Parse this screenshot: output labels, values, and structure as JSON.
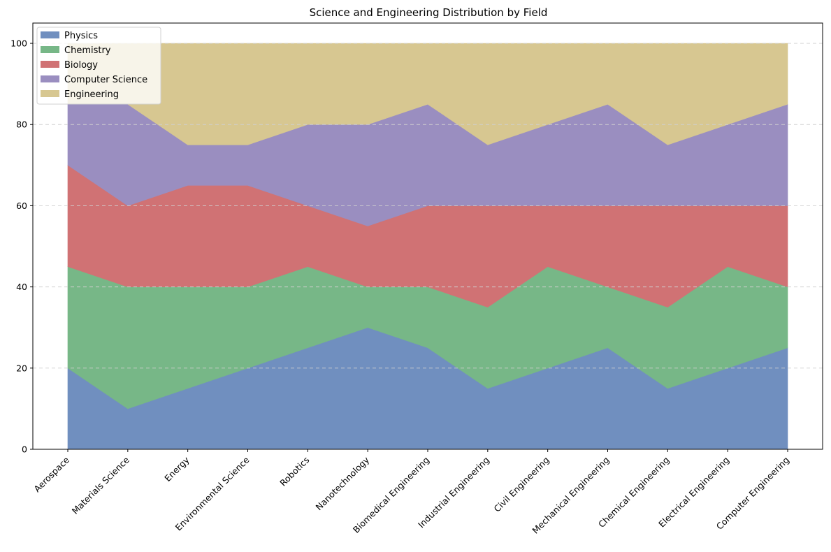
{
  "chart_data": {
    "type": "area",
    "stacked": true,
    "title": "Science and Engineering Distribution by Field",
    "xlabel": "",
    "ylabel": "",
    "ylim": [
      0,
      105
    ],
    "yticks": [
      0,
      20,
      40,
      60,
      80,
      100
    ],
    "grid": "y-dashed",
    "legend_position": "top-left",
    "categories": [
      "Aerospace",
      "Materials Science",
      "Energy",
      "Environmental Science",
      "Robotics",
      "Nanotechnology",
      "Biomedical Engineering",
      "Industrial Engineering",
      "Civil Engineering",
      "Mechanical Engineering",
      "Chemical Engineering",
      "Electrical Engineering",
      "Computer Engineering"
    ],
    "series": [
      {
        "name": "Physics",
        "color": "#708fbf",
        "values": [
          20,
          10,
          15,
          20,
          25,
          30,
          25,
          15,
          20,
          25,
          15,
          20,
          25
        ]
      },
      {
        "name": "Chemistry",
        "color": "#77b787",
        "values": [
          25,
          30,
          25,
          20,
          20,
          10,
          15,
          20,
          25,
          15,
          20,
          25,
          15
        ]
      },
      {
        "name": "Biology",
        "color": "#d07274",
        "values": [
          25,
          20,
          25,
          25,
          15,
          15,
          20,
          25,
          15,
          20,
          25,
          15,
          20
        ]
      },
      {
        "name": "Computer Science",
        "color": "#9a8ec0",
        "values": [
          15,
          25,
          10,
          10,
          20,
          25,
          25,
          15,
          20,
          25,
          15,
          20,
          25
        ]
      },
      {
        "name": "Engineering",
        "color": "#d7c791",
        "values": [
          15,
          15,
          25,
          25,
          20,
          20,
          15,
          25,
          20,
          15,
          25,
          20,
          15
        ]
      }
    ]
  }
}
